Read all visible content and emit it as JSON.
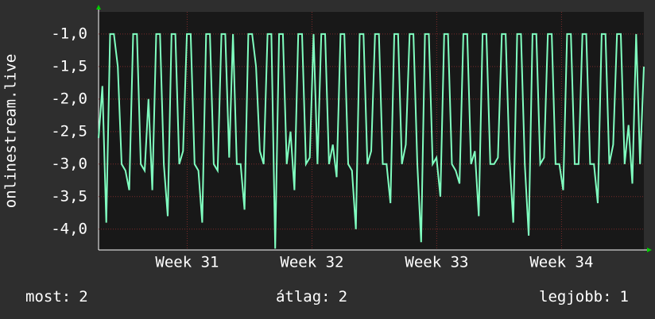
{
  "chart_data": {
    "type": "line",
    "y_label": "onlinestream.live",
    "series": [
      {
        "name": "onlinestream.live",
        "color": "#80ffc0",
        "values": [
          -2.6,
          -1.8,
          -3.9,
          -1.0,
          -1.0,
          -1.5,
          -3.0,
          -3.1,
          -3.4,
          -1.0,
          -1.0,
          -3.0,
          -3.1,
          -2.0,
          -3.4,
          -1.0,
          -1.0,
          -3.0,
          -3.8,
          -1.0,
          -1.0,
          -3.0,
          -2.8,
          -1.0,
          -1.0,
          -3.0,
          -3.1,
          -3.9,
          -1.0,
          -1.0,
          -3.0,
          -3.1,
          -1.0,
          -1.0,
          -2.9,
          -1.0,
          -3.0,
          -3.0,
          -3.7,
          -1.0,
          -1.0,
          -1.5,
          -2.8,
          -3.0,
          -1.0,
          -1.0,
          -4.3,
          -1.0,
          -1.0,
          -3.0,
          -2.5,
          -3.4,
          -1.0,
          -1.0,
          -3.0,
          -2.9,
          -1.0,
          -3.0,
          -1.0,
          -1.0,
          -3.0,
          -2.7,
          -3.2,
          -1.0,
          -1.0,
          -3.0,
          -3.1,
          -4.0,
          -1.0,
          -1.0,
          -3.0,
          -2.8,
          -1.0,
          -1.0,
          -3.0,
          -3.0,
          -3.6,
          -1.0,
          -1.0,
          -3.0,
          -2.7,
          -1.0,
          -1.0,
          -3.0,
          -4.2,
          -1.0,
          -1.0,
          -3.0,
          -2.9,
          -3.5,
          -1.0,
          -1.0,
          -3.0,
          -3.1,
          -3.3,
          -1.0,
          -1.0,
          -3.0,
          -2.8,
          -3.8,
          -1.0,
          -1.0,
          -3.0,
          -3.0,
          -2.9,
          -1.0,
          -1.0,
          -2.9,
          -3.9,
          -1.0,
          -1.0,
          -3.0,
          -4.1,
          -1.0,
          -1.0,
          -3.0,
          -2.9,
          -1.0,
          -1.0,
          -3.0,
          -3.0,
          -3.4,
          -1.0,
          -1.0,
          -3.0,
          -3.0,
          -1.0,
          -1.0,
          -3.0,
          -3.0,
          -3.6,
          -1.0,
          -1.0,
          -3.0,
          -2.7,
          -1.0,
          -1.0,
          -3.0,
          -2.4,
          -3.3,
          -1.0,
          -3.0,
          -1.5
        ]
      }
    ],
    "xlim": [
      30.29,
      34.66
    ],
    "xticks": [
      {
        "value": 31,
        "label": "Week 31"
      },
      {
        "value": 32,
        "label": "Week 32"
      },
      {
        "value": 33,
        "label": "Week 33"
      },
      {
        "value": 34,
        "label": "Week 34"
      }
    ],
    "ylim": [
      -4.32,
      -0.66
    ],
    "yticks": [
      {
        "value": -1,
        "label": "-1,0"
      },
      {
        "value": -1.5,
        "label": "-1,5"
      },
      {
        "value": -2,
        "label": "-2,0"
      },
      {
        "value": -2.5,
        "label": "-2,5"
      },
      {
        "value": -3,
        "label": "-3,0"
      },
      {
        "value": -3.5,
        "label": "-3,5"
      },
      {
        "value": -4,
        "label": "-4,0"
      }
    ],
    "grid": true,
    "legend": [
      {
        "label": "most:",
        "value": 2
      },
      {
        "label": "átlag:",
        "value": 2
      },
      {
        "label": "legjobb:",
        "value": 1
      }
    ]
  }
}
